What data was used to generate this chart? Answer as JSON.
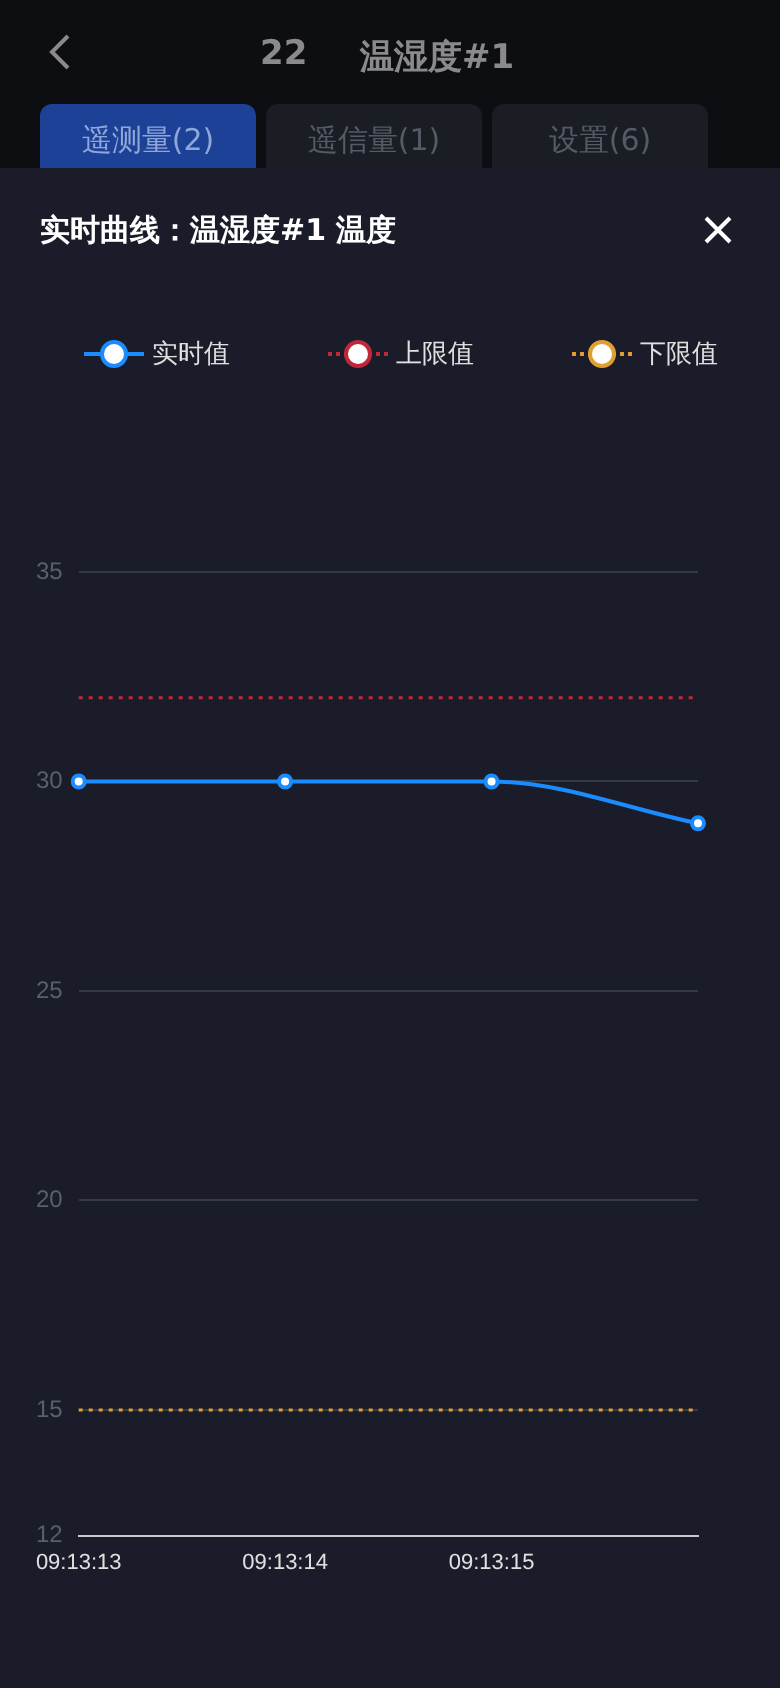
{
  "chart_data": {
    "type": "line",
    "title": "实时曲线：温湿度#1 温度",
    "annotations": [
      "22",
      "温湿度#1",
      "遥测量(2)",
      "遥信量(1)",
      "设置(6)"
    ],
    "categories": [
      "09:13:13",
      "09:13:14",
      "09:13:15",
      null
    ],
    "series": [
      {
        "name": "实时值",
        "color": "#1a8cff",
        "values": [
          30,
          30,
          30,
          29
        ],
        "marker": "circle",
        "line_style": "solid"
      },
      {
        "name": "上限值",
        "color": "#c0283a",
        "values": [
          32,
          32,
          32,
          32
        ],
        "marker": "none",
        "line_style": "dotted"
      },
      {
        "name": "下限值",
        "color": "#e0a030",
        "values": [
          15,
          15,
          15,
          15
        ],
        "marker": "none",
        "line_style": "dotted"
      }
    ],
    "ylim": [
      12,
      35
    ],
    "yticks": [
      12,
      15,
      20,
      25,
      30,
      35
    ],
    "grid": "y",
    "legend": "top"
  }
}
